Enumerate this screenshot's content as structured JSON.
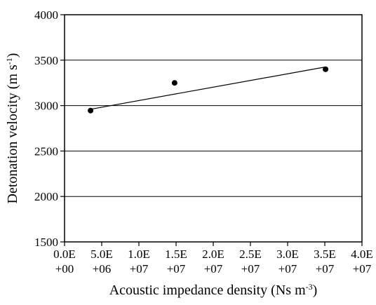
{
  "chart_data": {
    "type": "scatter",
    "title": "",
    "xlabel": "Acoustic impedance density (Ns m",
    "xlabel_sup": "-3",
    "xlabel_end": ")",
    "ylabel": "Detonation velocity (m s",
    "ylabel_sup": "-1",
    "ylabel_end": ")",
    "xlim": [
      0,
      40000000
    ],
    "ylim": [
      1500,
      4000
    ],
    "grid": "horizontal",
    "legend": "none",
    "x_ticks": [
      {
        "value": 0,
        "line1": "0.0E",
        "line2": "+00"
      },
      {
        "value": 5000000,
        "line1": "5.0E",
        "line2": "+06"
      },
      {
        "value": 10000000,
        "line1": "1.0E",
        "line2": "+07"
      },
      {
        "value": 15000000,
        "line1": "1.5E",
        "line2": "+07"
      },
      {
        "value": 20000000,
        "line1": "2.0E",
        "line2": "+07"
      },
      {
        "value": 25000000,
        "line1": "2.5E",
        "line2": "+07"
      },
      {
        "value": 30000000,
        "line1": "3.0E",
        "line2": "+07"
      },
      {
        "value": 35000000,
        "line1": "3.5E",
        "line2": "+07"
      },
      {
        "value": 40000000,
        "line1": "4.0E",
        "line2": "+07"
      }
    ],
    "y_ticks": [
      {
        "value": 1500,
        "label": "1500"
      },
      {
        "value": 2000,
        "label": "2000"
      },
      {
        "value": 2500,
        "label": "2500"
      },
      {
        "value": 3000,
        "label": "3000"
      },
      {
        "value": 3500,
        "label": "3500"
      },
      {
        "value": 4000,
        "label": "4000"
      }
    ],
    "series": [
      {
        "points": [
          {
            "x": 3500000,
            "y": 2945
          },
          {
            "x": 14800000,
            "y": 3250
          },
          {
            "x": 35100000,
            "y": 3400
          }
        ]
      }
    ],
    "trendline": {
      "type": "linear",
      "points": [
        {
          "x": 3500000,
          "y": 2960
        },
        {
          "x": 35100000,
          "y": 3425
        }
      ]
    }
  }
}
